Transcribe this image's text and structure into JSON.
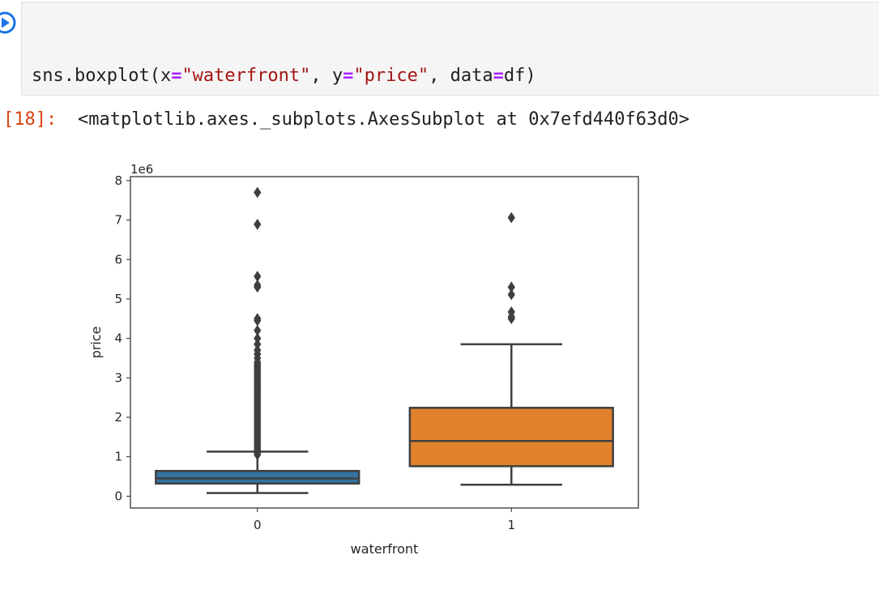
{
  "cell": {
    "code": {
      "fn": "sns.boxplot(x",
      "eq1": "=",
      "arg1": "\"waterfront\"",
      "sep1": ", y",
      "eq2": "=",
      "arg2": "\"price\"",
      "sep2": ", data",
      "eq3": "=",
      "tail": "df)"
    },
    "run_icon": "play-circle-icon"
  },
  "output": {
    "prompt": "[18]:",
    "text": "<matplotlib.axes._subplots.AxesSubplot at 0x7efd440f63d0>"
  },
  "chart_data": {
    "type": "box",
    "xlabel": "waterfront",
    "ylabel": "price",
    "y_offset_label": "1e6",
    "ylim": [
      -300000,
      8100000
    ],
    "yticks": [
      0,
      1000000,
      2000000,
      3000000,
      4000000,
      5000000,
      6000000,
      7000000,
      8000000
    ],
    "ytick_labels": [
      "0",
      "1",
      "2",
      "3",
      "4",
      "5",
      "6",
      "7",
      "8"
    ],
    "categories": [
      "0",
      "1"
    ],
    "colors": [
      "#3274a1",
      "#e1812c"
    ],
    "grid": false,
    "boxes": [
      {
        "category": "0",
        "whisker_low": 80000,
        "q1": 320000,
        "median": 450000,
        "q3": 640000,
        "whisker_high": 1130000,
        "outliers": [
          1050000,
          1100000,
          1150000,
          1200000,
          1250000,
          1300000,
          1350000,
          1400000,
          1450000,
          1500000,
          1550000,
          1600000,
          1650000,
          1700000,
          1750000,
          1800000,
          1850000,
          1900000,
          1950000,
          2000000,
          2050000,
          2100000,
          2150000,
          2200000,
          2250000,
          2300000,
          2350000,
          2400000,
          2450000,
          2500000,
          2550000,
          2600000,
          2650000,
          2700000,
          2750000,
          2800000,
          2850000,
          2900000,
          2950000,
          3000000,
          3050000,
          3100000,
          3150000,
          3200000,
          3250000,
          3300000,
          3350000,
          3400000,
          3500000,
          3600000,
          3700000,
          3850000,
          4000000,
          4200000,
          4450000,
          4500000,
          5300000,
          5350000,
          5570000,
          6890000,
          7700000
        ]
      },
      {
        "category": "1",
        "whisker_low": 290000,
        "q1": 760000,
        "median": 1400000,
        "q3": 2240000,
        "whisker_high": 3850000,
        "outliers": [
          4500000,
          4550000,
          4670000,
          5110000,
          5300000,
          7060000
        ]
      }
    ]
  }
}
